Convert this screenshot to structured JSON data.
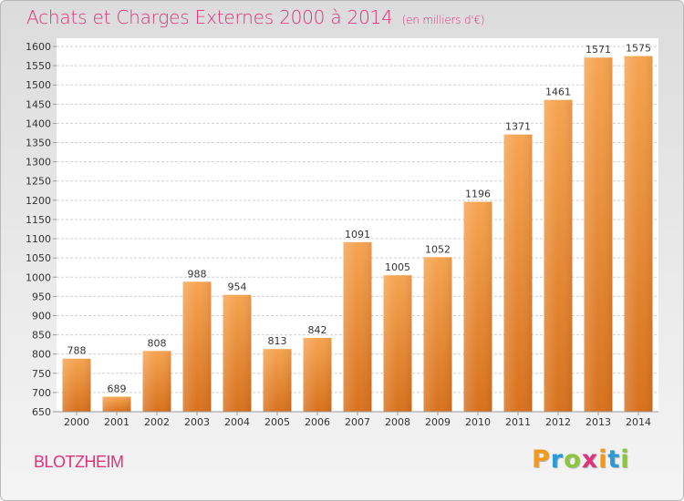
{
  "header": {
    "title": "Achats et Charges Externes 2000 à 2014",
    "subtitle": "(en milliers d'€)"
  },
  "location": "BLOTZHEIM",
  "brand": {
    "letters": [
      "P",
      "r",
      "o",
      "x",
      "i",
      "t",
      "i"
    ],
    "colors": [
      "#f39a1e",
      "#2b9bd8",
      "#8cc63f",
      "#e0327a",
      "#f39a1e",
      "#2b9bd8",
      "#8cc63f"
    ]
  },
  "chart_data": {
    "type": "bar",
    "categories": [
      "2000",
      "2001",
      "2002",
      "2003",
      "2004",
      "2005",
      "2006",
      "2007",
      "2008",
      "2009",
      "2010",
      "2011",
      "2012",
      "2013",
      "2014"
    ],
    "values": [
      788,
      689,
      808,
      988,
      954,
      813,
      842,
      1091,
      1005,
      1052,
      1196,
      1371,
      1461,
      1571,
      1575
    ],
    "ylim": [
      650,
      1600
    ],
    "yticks": [
      650,
      700,
      750,
      800,
      850,
      900,
      950,
      1000,
      1050,
      1100,
      1150,
      1200,
      1250,
      1300,
      1350,
      1400,
      1450,
      1500,
      1550,
      1600
    ],
    "grid": true,
    "bar_color": "#e8832a"
  }
}
